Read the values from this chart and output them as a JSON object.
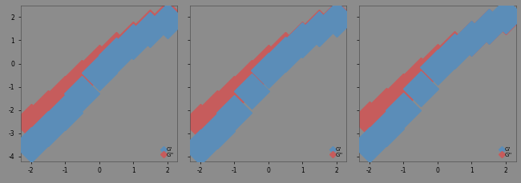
{
  "panels": [
    {
      "title": "",
      "G_prime": {
        "x": [
          -2.0,
          -1.5,
          -1.0,
          -0.5,
          0.0,
          0.5,
          1.0,
          1.5,
          2.0
        ],
        "y": [
          -3.5,
          -2.8,
          -2.1,
          -1.3,
          -0.4,
          0.35,
          0.95,
          1.45,
          1.85
        ]
      },
      "G_double_prime": {
        "x": [
          -2.0,
          -1.5,
          -1.0,
          -0.5,
          0.0,
          0.5,
          1.0,
          1.5,
          2.0
        ],
        "y": [
          -2.5,
          -1.9,
          -1.3,
          -0.6,
          0.05,
          0.6,
          1.05,
          1.55,
          1.95
        ]
      }
    },
    {
      "title": "",
      "G_prime": {
        "x": [
          -2.0,
          -1.5,
          -1.0,
          -0.5,
          0.0,
          0.5,
          1.0,
          1.5,
          2.0
        ],
        "y": [
          -3.6,
          -2.9,
          -2.1,
          -1.2,
          -0.3,
          0.4,
          1.0,
          1.5,
          1.9
        ]
      },
      "G_double_prime": {
        "x": [
          -2.0,
          -1.5,
          -1.0,
          -0.5,
          0.0,
          0.5,
          1.0,
          1.5,
          2.0
        ],
        "y": [
          -2.5,
          -1.9,
          -1.3,
          -0.6,
          0.05,
          0.6,
          1.05,
          1.55,
          1.95
        ]
      }
    },
    {
      "title": "",
      "G_prime": {
        "x": [
          -2.0,
          -1.5,
          -1.0,
          -0.5,
          0.0,
          0.5,
          1.0,
          1.5,
          2.0
        ],
        "y": [
          -3.5,
          -2.8,
          -2.0,
          -1.1,
          -0.15,
          0.55,
          1.1,
          1.6,
          2.05
        ]
      },
      "G_double_prime": {
        "x": [
          -2.0,
          -1.5,
          -1.0,
          -0.5,
          0.0,
          0.5,
          1.0,
          1.5,
          2.0
        ],
        "y": [
          -2.4,
          -1.8,
          -1.2,
          -0.5,
          0.1,
          0.65,
          1.1,
          1.6,
          2.0
        ]
      }
    }
  ],
  "color_G_prime": "#5B8DB8",
  "color_G_double_prime": "#C65C5C",
  "bg_color": "#8C8C8C",
  "xlim": [
    -2.3,
    2.3
  ],
  "ylim": [
    -4.2,
    2.5
  ],
  "legend_label_prime": "G'",
  "legend_label_double": "G''",
  "marker": "D",
  "marker_size": 22,
  "linewidth": 0.0,
  "tick_labelsize": 5.5,
  "label_fontsize": 6,
  "xticks": [
    -2,
    -1,
    0,
    1,
    2
  ],
  "yticks": [
    -4,
    -3,
    -2,
    -1,
    0,
    1,
    2
  ]
}
